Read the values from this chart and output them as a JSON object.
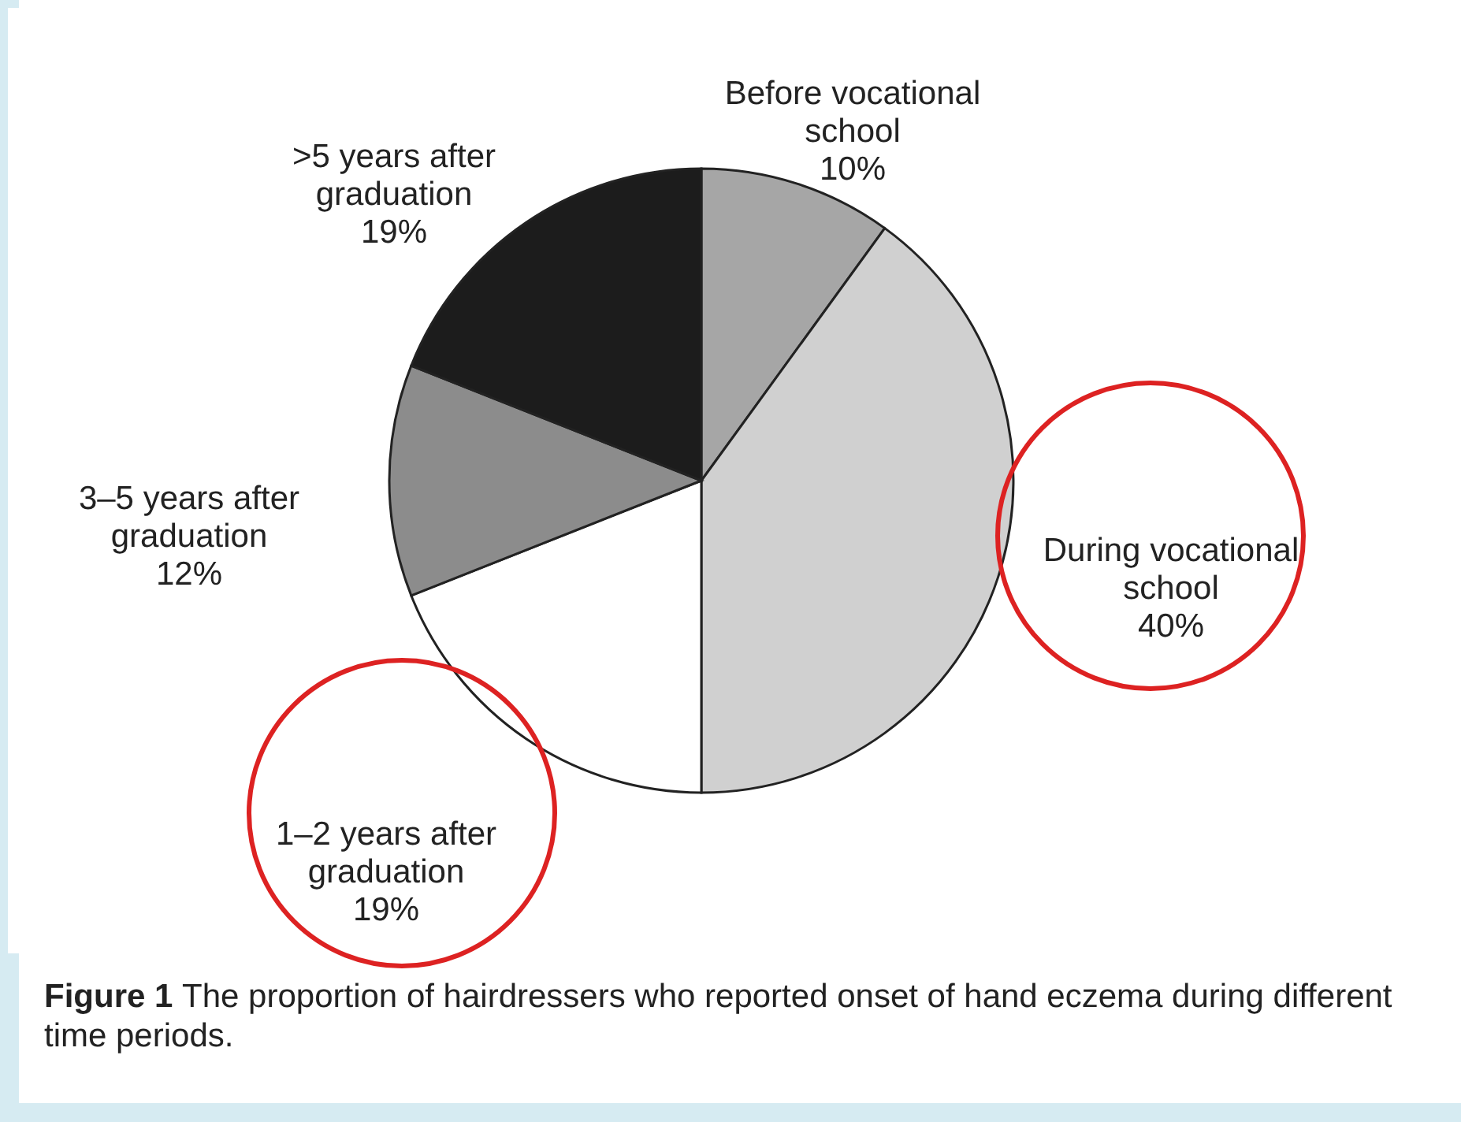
{
  "chart_data": {
    "type": "pie",
    "categories": [
      "Before vocational school",
      "During vocational school",
      "1–2 years after graduation",
      "3–5 years after graduation",
      ">5 years after graduation"
    ],
    "values": [
      10,
      40,
      19,
      12,
      19
    ],
    "value_labels": [
      "10%",
      "40%",
      "19%",
      "12%",
      "19%"
    ],
    "colors": [
      "#a6a6a6",
      "#d0d0d0",
      "#ffffff",
      "#8c8c8c",
      "#1c1c1c"
    ],
    "annotations": [
      "Figure 1 The proportion of hairdressers who reported onset of hand eczema during different time periods."
    ]
  }
}
